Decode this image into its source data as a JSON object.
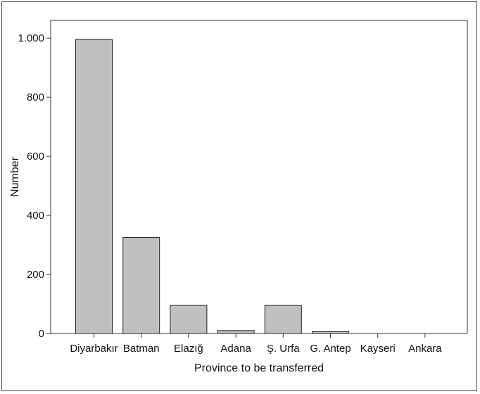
{
  "chart_data": {
    "type": "bar",
    "categories": [
      "Diyarbakır",
      "Batman",
      "Elazığ",
      "Adana",
      "Ş. Urfa",
      "G. Antep",
      "Kayseri",
      "Ankara"
    ],
    "values": [
      995,
      325,
      95,
      10,
      95,
      6,
      0,
      0
    ],
    "yticks": [
      0,
      200,
      400,
      600,
      800,
      1000
    ],
    "ytick_labels": [
      "0",
      "200",
      "400",
      "600",
      "800",
      "1.000"
    ],
    "ylim": [
      0,
      1060
    ],
    "xlabel": "Province to be transferred",
    "ylabel": "Number",
    "colors": {
      "bar_fill": "#c0c0c0",
      "bar_stroke": "#222222",
      "axis": "#333333"
    }
  }
}
